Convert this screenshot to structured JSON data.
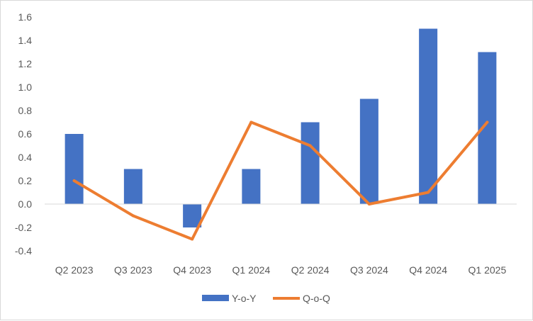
{
  "chart_data": {
    "type": "bar",
    "categories": [
      "Q2 2023",
      "Q3 2023",
      "Q4 2023",
      "Q1 2024",
      "Q2 2024",
      "Q3 2024",
      "Q4 2024",
      "Q1 2025"
    ],
    "series": [
      {
        "name": "Y-o-Y",
        "type": "bar",
        "values": [
          0.6,
          0.3,
          -0.2,
          0.3,
          0.7,
          0.9,
          1.5,
          1.3
        ],
        "color": "#4472C4"
      },
      {
        "name": "Q-o-Q",
        "type": "line",
        "values": [
          0.2,
          -0.1,
          -0.3,
          0.7,
          0.5,
          0.0,
          0.1,
          0.7
        ],
        "color": "#ED7D31"
      }
    ],
    "ylim": [
      -0.4,
      1.6
    ],
    "yticks": [
      "1.6",
      "1.4",
      "1.2",
      "1.0",
      "0.8",
      "0.6",
      "0.4",
      "0.2",
      "0.0",
      "-0.2",
      "-0.4"
    ],
    "title": "",
    "xlabel": "",
    "ylabel": "",
    "grid": false,
    "legend_position": "bottom"
  }
}
